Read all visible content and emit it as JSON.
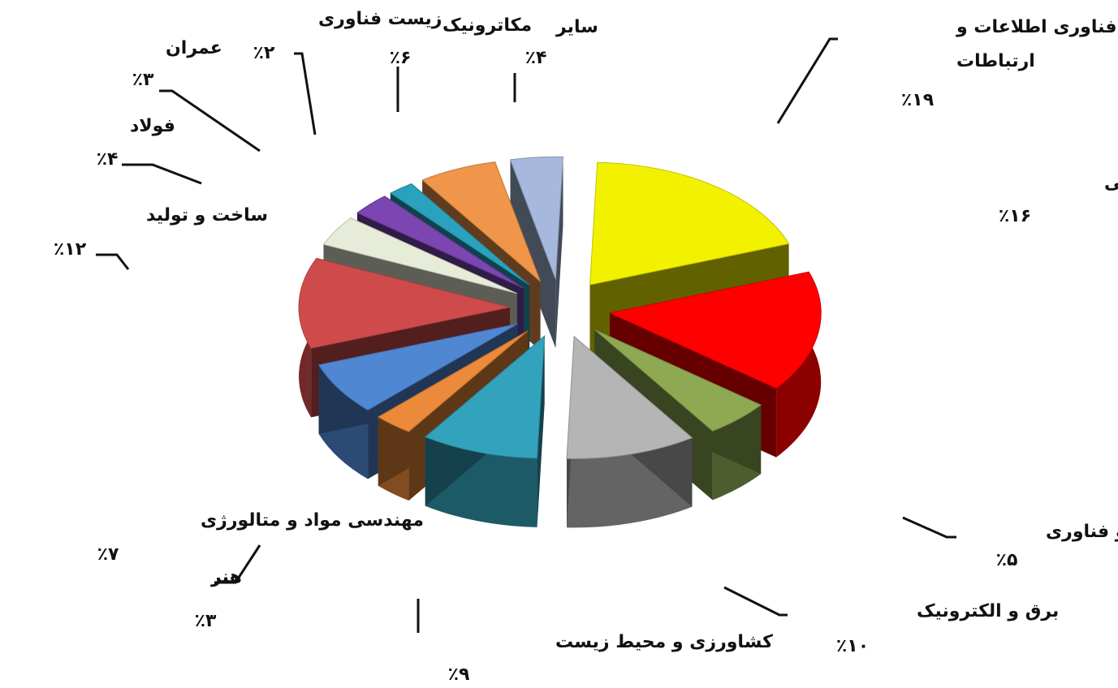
{
  "chart_data": {
    "type": "pie",
    "title": "",
    "slices": [
      {
        "name": "فناوری اطلاعات و ارتباطات",
        "lines": [
          "فناوری اطلاعات و",
          "ارتباطات"
        ],
        "label": "٪۱۹",
        "value": 19,
        "color": "#f2f200"
      },
      {
        "name": "شیمی و صنایع شیمیایی",
        "lines": [
          "شیمی و صنایع شیمیایی"
        ],
        "label": "٪۱۶",
        "value": 16,
        "color": "#ff0000"
      },
      {
        "name": "نانو فناوری",
        "lines": [
          "نانو فناوری"
        ],
        "label": "٪۵",
        "value": 5,
        "color": "#8ea951"
      },
      {
        "name": "برق و الکترونیک",
        "lines": [
          "برق و الکترونیک"
        ],
        "label": "٪۱۰",
        "value": 10,
        "color": "#b5b5b5"
      },
      {
        "name": "کشاورزی و محیط زیست",
        "lines": [
          "کشاورزی و محیط زیست"
        ],
        "label": "٪۹",
        "value": 9,
        "color": "#33a3bd"
      },
      {
        "name": "هنر",
        "lines": [
          "هنر"
        ],
        "label": "٪۳",
        "value": 3,
        "color": "#ea8a3a"
      },
      {
        "name": "مهندسی مواد و متالورژی",
        "lines": [
          "مهندسی مواد و متالورژی"
        ],
        "label": "٪۷",
        "value": 7,
        "color": "#4f87d2"
      },
      {
        "name": "ساخت و تولید",
        "lines": [
          "ساخت و تولید"
        ],
        "label": "٪۱۲",
        "value": 12,
        "color": "#cf4b4b"
      },
      {
        "name": "فولاد",
        "lines": [
          "فولاد"
        ],
        "label": "٪۴",
        "value": 4,
        "color": "#e6ecd8"
      },
      {
        "name": "عمران",
        "lines": [
          "عمران"
        ],
        "label": "٪۳",
        "value": 3,
        "color": "#7b45b2"
      },
      {
        "name": "زیست فناوری",
        "lines": [
          "زیست فناوری"
        ],
        "label": "٪۲",
        "value": 2,
        "color": "#2ba2bd"
      },
      {
        "name": "مکاترونیک",
        "lines": [
          "مکاترونیک"
        ],
        "label": "٪۶",
        "value": 6,
        "color": "#f0964a"
      },
      {
        "name": "سایر",
        "lines": [
          "سایر"
        ],
        "label": "٪۴",
        "value": 4,
        "color": "#a6b9dc"
      }
    ],
    "legend": "none"
  }
}
